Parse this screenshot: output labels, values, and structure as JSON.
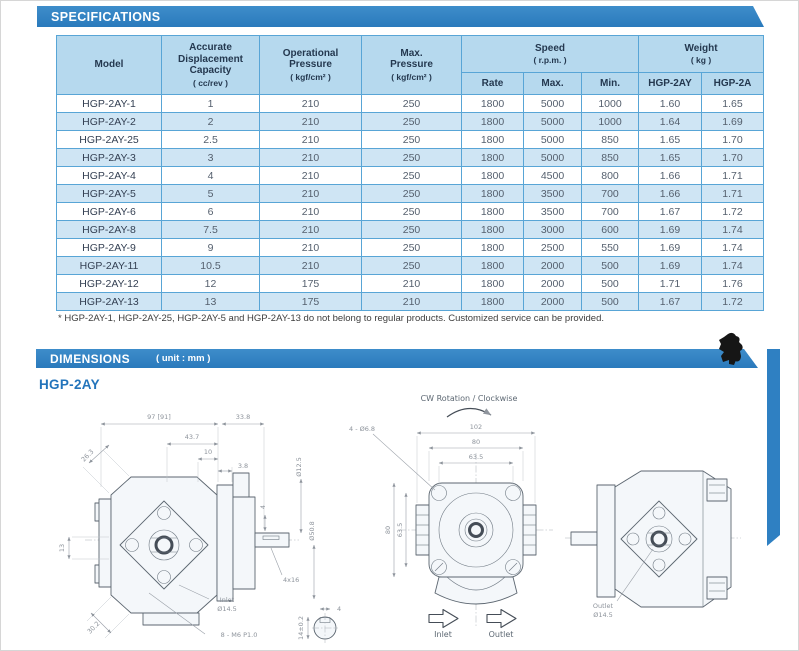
{
  "banners": {
    "specifications": "SPECIFICATIONS",
    "dimensions": "DIMENSIONS",
    "dimensions_unit": "( unit : mm )"
  },
  "series_label": "HGP-2AY",
  "footnote": "* HGP-2AY-1, HGP-2AY-25, HGP-2AY-5 and HGP-2AY-13 do not belong to regular products. Customized service can be provided.",
  "colors": {
    "banner_blue": "#2d7fc1",
    "header_bg": "#b6d9ee",
    "row_alt_bg": "#cfe5f4",
    "table_border": "#58a5d6",
    "header_text": "#24384f",
    "accent_blue": "#2374bb"
  },
  "table": {
    "headers": {
      "model": "Model",
      "capacity": "Accurate\nDisplacement\nCapacity",
      "capacity_unit": "( cc/rev )",
      "op_pressure": "Operational\nPressure",
      "op_pressure_unit": "( kgf/cm² )",
      "max_pressure": "Max.\nPressure",
      "max_pressure_unit": "( kgf/cm² )",
      "speed": "Speed",
      "speed_unit": "( r.p.m. )",
      "rate": "Rate",
      "max": "Max.",
      "min": "Min.",
      "weight": "Weight",
      "weight_unit": "( kg )",
      "weight_col1": "HGP-2AY",
      "weight_col2": "HGP-2A"
    },
    "rows": [
      [
        "HGP-2AY-1",
        "1",
        "210",
        "250",
        "1800",
        "5000",
        "1000",
        "1.60",
        "1.65"
      ],
      [
        "HGP-2AY-2",
        "2",
        "210",
        "250",
        "1800",
        "5000",
        "1000",
        "1.64",
        "1.69"
      ],
      [
        "HGP-2AY-25",
        "2.5",
        "210",
        "250",
        "1800",
        "5000",
        "850",
        "1.65",
        "1.70"
      ],
      [
        "HGP-2AY-3",
        "3",
        "210",
        "250",
        "1800",
        "5000",
        "850",
        "1.65",
        "1.70"
      ],
      [
        "HGP-2AY-4",
        "4",
        "210",
        "250",
        "1800",
        "4500",
        "800",
        "1.66",
        "1.71"
      ],
      [
        "HGP-2AY-5",
        "5",
        "210",
        "250",
        "1800",
        "3500",
        "700",
        "1.66",
        "1.71"
      ],
      [
        "HGP-2AY-6",
        "6",
        "210",
        "250",
        "1800",
        "3500",
        "700",
        "1.67",
        "1.72"
      ],
      [
        "HGP-2AY-8",
        "7.5",
        "210",
        "250",
        "1800",
        "3000",
        "600",
        "1.69",
        "1.74"
      ],
      [
        "HGP-2AY-9",
        "9",
        "210",
        "250",
        "1800",
        "2500",
        "550",
        "1.69",
        "1.74"
      ],
      [
        "HGP-2AY-11",
        "10.5",
        "210",
        "250",
        "1800",
        "2000",
        "500",
        "1.69",
        "1.74"
      ],
      [
        "HGP-2AY-12",
        "12",
        "175",
        "210",
        "1800",
        "2000",
        "500",
        "1.71",
        "1.76"
      ],
      [
        "HGP-2AY-13",
        "13",
        "175",
        "210",
        "1800",
        "2000",
        "500",
        "1.67",
        "1.72"
      ]
    ]
  },
  "drawings": {
    "cw_label": "CW Rotation / Clockwise",
    "side": {
      "len_total": "97 [91]",
      "len_front": "33.8",
      "d43_7": "43.7",
      "d10": "10",
      "d3_8": "3.8",
      "d26_3": "26.3",
      "d13": "13",
      "d30_2": "30.2",
      "shaft_dia": "Ø12.5",
      "pilot_dia": "Ø50.8",
      "key_w": "4",
      "key_label": "4x16",
      "inlet_label": "Inlet",
      "inlet_dia": "Ø14.5",
      "thread_label": "8 - M6 P1.0",
      "key_detail_w": "4",
      "key_detail_h": "14±0.2"
    },
    "front": {
      "w1": "102",
      "w2": "80",
      "w3": "63.5",
      "h1": "80",
      "h2": "63.5",
      "holes": "4 - Ø6.8",
      "inlet": "Inlet",
      "outlet": "Outlet"
    },
    "rear": {
      "outlet_label": "Outlet",
      "outlet_dia": "Ø14.5"
    }
  }
}
